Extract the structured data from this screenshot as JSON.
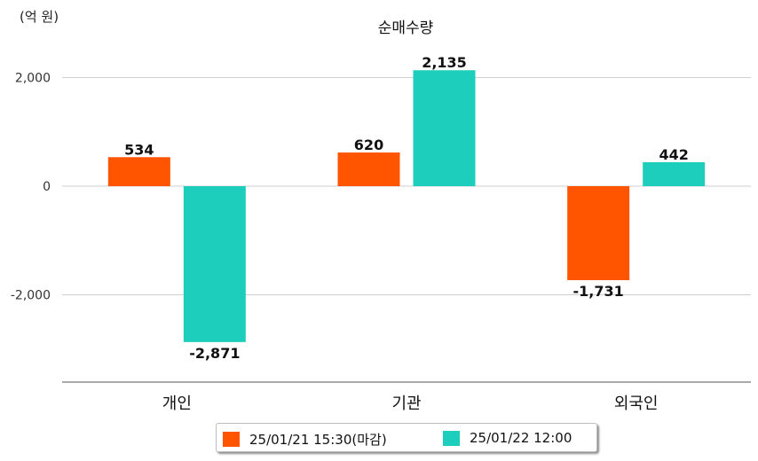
{
  "unit_label": "(억 원)",
  "chart_data": {
    "type": "bar",
    "title": "순매수량",
    "categories": [
      "개인",
      "기관",
      "외국인"
    ],
    "series": [
      {
        "name": "25/01/21 15:30(마감)",
        "color": "#ff5500",
        "values": [
          534,
          620,
          -1731
        ],
        "labels": [
          "534",
          "620",
          "-1,731"
        ]
      },
      {
        "name": "25/01/22 12:00",
        "color": "#1ecebc",
        "values": [
          -2871,
          2135,
          442
        ],
        "labels": [
          "-2,871",
          "2,135",
          "442"
        ]
      }
    ],
    "yticks": [
      2000,
      0,
      -2000
    ],
    "ytick_labels": [
      "2,000",
      "0",
      "-2,000"
    ],
    "ylim": [
      -3600,
      2000
    ],
    "grid": true,
    "legend_position": "bottom"
  }
}
